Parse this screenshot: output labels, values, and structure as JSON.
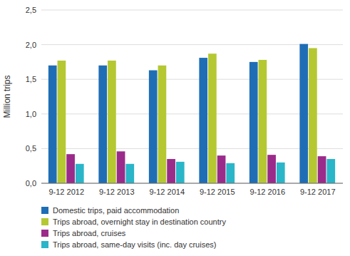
{
  "chart_data": {
    "type": "bar",
    "categories": [
      "9-12 2012",
      "9-12 2013",
      "9-12 2014",
      "9-12 2015",
      "9-12 2016",
      "9-12 2017"
    ],
    "series": [
      {
        "name": "Domestic trips, paid accommodation",
        "color": "#1f6eb5",
        "values": [
          1.7,
          1.7,
          1.63,
          1.81,
          1.75,
          2.01
        ]
      },
      {
        "name": "Trips abroad, overnight stay in destination country",
        "color": "#b5c832",
        "values": [
          1.77,
          1.77,
          1.7,
          1.87,
          1.78,
          1.95
        ]
      },
      {
        "name": "Trips abroad, cruises",
        "color": "#9b2b8a",
        "values": [
          0.42,
          0.46,
          0.35,
          0.4,
          0.41,
          0.39
        ]
      },
      {
        "name": "Trips abroad, same-day visits (inc. day cruises)",
        "color": "#2ab5c8",
        "values": [
          0.28,
          0.28,
          0.31,
          0.29,
          0.3,
          0.35
        ]
      }
    ],
    "ylabel": "Million trips",
    "ylim": [
      0,
      2.5
    ],
    "yticks": [
      {
        "value": 0.0,
        "label": "0,0"
      },
      {
        "value": 0.5,
        "label": "0,5"
      },
      {
        "value": 1.0,
        "label": "1,0"
      },
      {
        "value": 1.5,
        "label": "1,5"
      },
      {
        "value": 2.0,
        "label": "2,0"
      },
      {
        "value": 2.5,
        "label": "2,5"
      }
    ],
    "grid": true,
    "legend": "lower left"
  }
}
